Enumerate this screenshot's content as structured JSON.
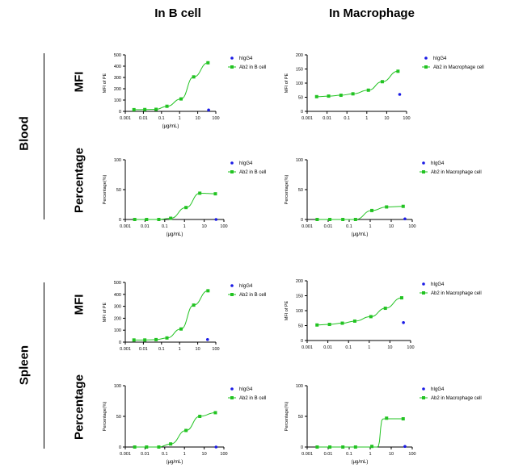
{
  "column_titles": [
    "In B cell",
    "In Macrophage"
  ],
  "row_labels": [
    "Blood",
    "Spleen"
  ],
  "metric_labels": [
    "MFI",
    "Percentage",
    "MFI",
    "Percentage"
  ],
  "colors": {
    "higg4": "#1a1ae6",
    "ab2": "#22c322"
  },
  "chart_data": [
    {
      "type": "scatter",
      "title": "",
      "xlabel": "(μg/mL)",
      "ylabel": "MFI of PE",
      "xscale": "log",
      "xlim": [
        0.001,
        100
      ],
      "ylim": [
        0,
        500
      ],
      "xticks": [
        "0.001",
        "0.01",
        "0.1",
        "1",
        "10",
        "100"
      ],
      "yticks": [
        "0",
        "100",
        "200",
        "300",
        "400",
        "500"
      ],
      "legend_position": "top-right",
      "series": [
        {
          "name": "hIgG4",
          "color": "#1a1ae6",
          "x": [
            40
          ],
          "y": [
            12
          ]
        },
        {
          "name": "Ab2 in B cell",
          "color": "#22c322",
          "fit": "sigmoid",
          "x": [
            0.003,
            0.012,
            0.05,
            0.2,
            1.2,
            6,
            37
          ],
          "y": [
            15,
            16,
            18,
            45,
            110,
            305,
            430
          ]
        }
      ]
    },
    {
      "type": "scatter",
      "title": "",
      "xlabel": "",
      "ylabel": "MFI of PE",
      "xscale": "log",
      "xlim": [
        0.001,
        100
      ],
      "ylim": [
        0,
        200
      ],
      "xticks": [
        "0.001",
        "0.01",
        "0.1",
        "1",
        "10",
        "100"
      ],
      "yticks": [
        "0",
        "50",
        "100",
        "150",
        "200"
      ],
      "legend_position": "top-right",
      "series": [
        {
          "name": "hIgG4",
          "color": "#1a1ae6",
          "x": [
            45
          ],
          "y": [
            60
          ]
        },
        {
          "name": "Ab2 in Macrophage cell",
          "color": "#22c322",
          "fit": "sigmoid",
          "x": [
            0.003,
            0.012,
            0.05,
            0.2,
            1.2,
            6,
            37
          ],
          "y": [
            52,
            54,
            57,
            62,
            75,
            105,
            142
          ]
        }
      ]
    },
    {
      "type": "scatter",
      "title": "",
      "xlabel": "(μg/mL)",
      "ylabel": "Percentage(%)",
      "xscale": "log",
      "xlim": [
        0.001,
        100
      ],
      "ylim": [
        0,
        100
      ],
      "xticks": [
        "0.001",
        "0.01",
        "0.1",
        "1",
        "10",
        "100"
      ],
      "yticks": [
        "0",
        "50",
        "100"
      ],
      "legend_position": "top-right",
      "series": [
        {
          "name": "hIgG4",
          "color": "#1a1ae6",
          "x": [
            40
          ],
          "y": [
            0
          ]
        },
        {
          "name": "Ab2 in B cell",
          "color": "#22c322",
          "fit": "sigmoid",
          "x": [
            0.003,
            0.012,
            0.05,
            0.2,
            1.2,
            6,
            37
          ],
          "y": [
            0,
            0,
            0,
            2,
            20,
            44,
            43
          ]
        }
      ]
    },
    {
      "type": "scatter",
      "title": "",
      "xlabel": "(μg/mL)",
      "ylabel": "Percentage(%)",
      "xscale": "log",
      "xlim": [
        0.001,
        100
      ],
      "ylim": [
        0,
        100
      ],
      "xticks": [
        "0.001",
        "0.01",
        "0.1",
        "1",
        "10",
        "100"
      ],
      "yticks": [
        "0",
        "50",
        "100"
      ],
      "legend_position": "top-right",
      "series": [
        {
          "name": "hIgG4",
          "color": "#1a1ae6",
          "x": [
            45
          ],
          "y": [
            1
          ]
        },
        {
          "name": "Ab2 in Macrophage cell",
          "color": "#22c322",
          "fit": "sigmoid",
          "x": [
            0.003,
            0.012,
            0.05,
            0.2,
            1.2,
            6,
            37
          ],
          "y": [
            0,
            0,
            0,
            0,
            15,
            21,
            22
          ]
        }
      ]
    },
    {
      "type": "scatter",
      "title": "",
      "xlabel": "",
      "ylabel": "MFI of PE",
      "xscale": "log",
      "xlim": [
        0.001,
        100
      ],
      "ylim": [
        0,
        500
      ],
      "xticks": [
        "0.001",
        "0.01",
        "0.1",
        "1",
        "10",
        "100"
      ],
      "yticks": [
        "0",
        "100",
        "200",
        "300",
        "400",
        "500"
      ],
      "legend_position": "top-right",
      "series": [
        {
          "name": "hIgG4",
          "color": "#1a1ae6",
          "x": [
            35
          ],
          "y": [
            22
          ]
        },
        {
          "name": "Ab2 in B cell",
          "color": "#22c322",
          "fit": "sigmoid",
          "x": [
            0.003,
            0.012,
            0.05,
            0.2,
            1.2,
            6,
            37
          ],
          "y": [
            18,
            18,
            21,
            35,
            110,
            310,
            430
          ]
        }
      ]
    },
    {
      "type": "scatter",
      "title": "",
      "xlabel": "",
      "ylabel": "MFI of PE",
      "xscale": "log",
      "xlim": [
        0.001,
        100
      ],
      "ylim": [
        0,
        200
      ],
      "xticks": [
        "0.001",
        "0.01",
        "0.1",
        "1",
        "10",
        "100"
      ],
      "yticks": [
        "0",
        "50",
        "100",
        "150",
        "200"
      ],
      "legend_position": "top-right",
      "series": [
        {
          "name": "hIgG4",
          "color": "#1a1ae6",
          "x": [
            45
          ],
          "y": [
            60
          ]
        },
        {
          "name": "Ab2 in Macrophage cell",
          "color": "#22c322",
          "fit": "sigmoid",
          "x": [
            0.003,
            0.012,
            0.05,
            0.2,
            1.2,
            6,
            37
          ],
          "y": [
            52,
            54,
            58,
            65,
            80,
            108,
            143
          ]
        }
      ]
    },
    {
      "type": "scatter",
      "title": "",
      "xlabel": "(μg/mL)",
      "ylabel": "Percentage(%)",
      "xscale": "log",
      "xlim": [
        0.001,
        100
      ],
      "ylim": [
        0,
        100
      ],
      "xticks": [
        "0.001",
        "0.01",
        "0.1",
        "1",
        "10",
        "100"
      ],
      "yticks": [
        "0",
        "50",
        "100"
      ],
      "legend_position": "top-right",
      "series": [
        {
          "name": "hIgG4",
          "color": "#1a1ae6",
          "x": [
            40
          ],
          "y": [
            0
          ]
        },
        {
          "name": "Ab2 in B cell",
          "color": "#22c322",
          "fit": "sigmoid",
          "x": [
            0.003,
            0.012,
            0.05,
            0.2,
            1.2,
            6,
            37
          ],
          "y": [
            0,
            0,
            0,
            5,
            27,
            50,
            56
          ]
        }
      ]
    },
    {
      "type": "scatter",
      "title": "",
      "xlabel": "(μg/mL)",
      "ylabel": "Percentage(%)",
      "xscale": "log",
      "xlim": [
        0.001,
        100
      ],
      "ylim": [
        0,
        100
      ],
      "xticks": [
        "0.001",
        "0.01",
        "0.1",
        "1",
        "10",
        "100"
      ],
      "yticks": [
        "0",
        "50",
        "100"
      ],
      "legend_position": "top-right",
      "series": [
        {
          "name": "hIgG4",
          "color": "#1a1ae6",
          "x": [
            45
          ],
          "y": [
            1
          ]
        },
        {
          "name": "Ab2 in Macrophage cell",
          "color": "#22c322",
          "fit": "step",
          "x": [
            0.003,
            0.012,
            0.05,
            0.2,
            1.2,
            6,
            37
          ],
          "y": [
            0,
            0,
            0,
            0,
            1,
            47,
            46
          ]
        }
      ]
    }
  ]
}
